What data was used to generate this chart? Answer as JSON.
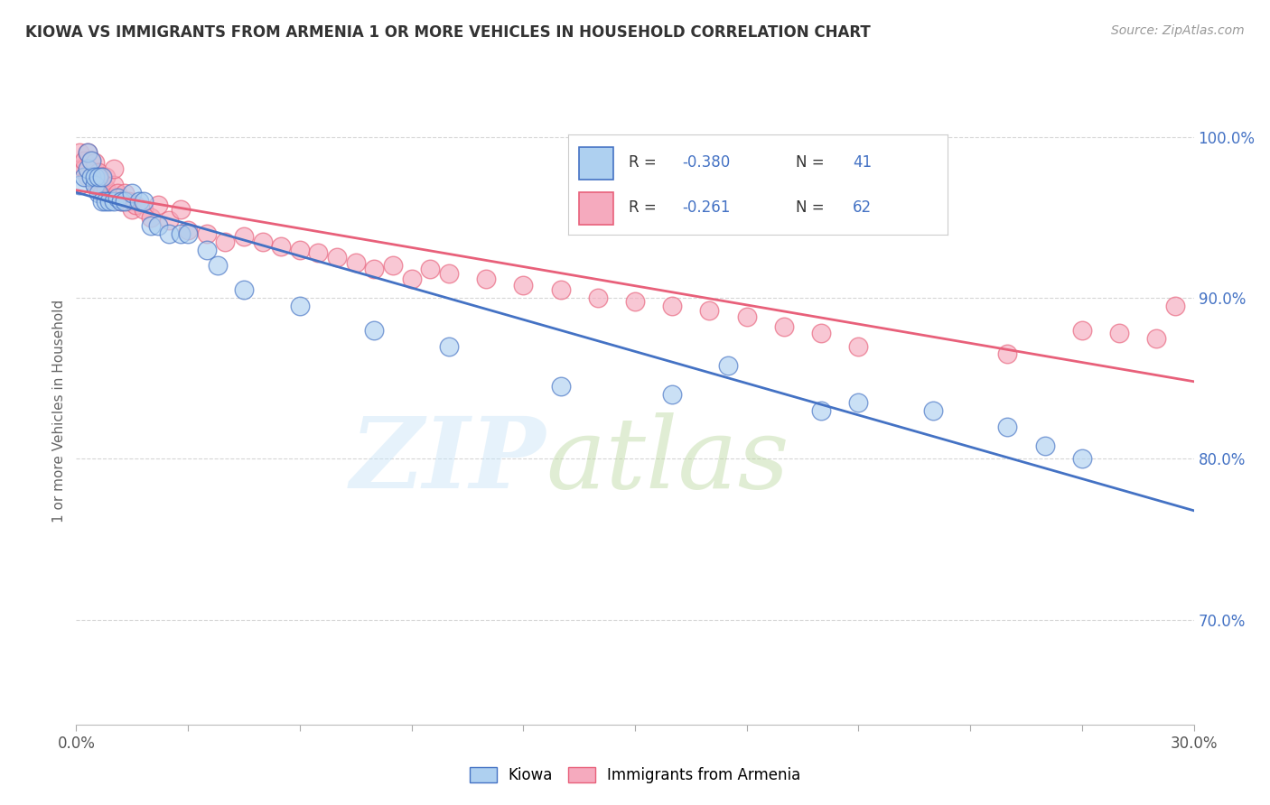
{
  "title": "KIOWA VS IMMIGRANTS FROM ARMENIA 1 OR MORE VEHICLES IN HOUSEHOLD CORRELATION CHART",
  "source": "Source: ZipAtlas.com",
  "ylabel": "1 or more Vehicles in Household",
  "ytick_labels": [
    "100.0%",
    "90.0%",
    "80.0%",
    "70.0%"
  ],
  "ytick_values": [
    1.0,
    0.9,
    0.8,
    0.7
  ],
  "xlim": [
    0.0,
    0.3
  ],
  "ylim": [
    0.635,
    1.025
  ],
  "kiowa_R": -0.38,
  "kiowa_N": 41,
  "armenia_R": -0.261,
  "armenia_N": 62,
  "kiowa_color": "#aed0f0",
  "armenia_color": "#f5aabe",
  "kiowa_line_color": "#4472c4",
  "armenia_line_color": "#e8607a",
  "background_color": "#ffffff",
  "grid_color": "#cccccc",
  "kiowa_x": [
    0.001,
    0.002,
    0.003,
    0.003,
    0.004,
    0.004,
    0.005,
    0.005,
    0.006,
    0.006,
    0.007,
    0.007,
    0.008,
    0.009,
    0.01,
    0.011,
    0.012,
    0.013,
    0.015,
    0.017,
    0.018,
    0.02,
    0.022,
    0.025,
    0.028,
    0.03,
    0.035,
    0.038,
    0.045,
    0.06,
    0.08,
    0.1,
    0.13,
    0.16,
    0.175,
    0.2,
    0.21,
    0.23,
    0.25,
    0.26,
    0.27
  ],
  "kiowa_y": [
    0.97,
    0.975,
    0.98,
    0.99,
    0.975,
    0.985,
    0.97,
    0.975,
    0.965,
    0.975,
    0.96,
    0.975,
    0.96,
    0.96,
    0.96,
    0.962,
    0.96,
    0.96,
    0.965,
    0.96,
    0.96,
    0.945,
    0.945,
    0.94,
    0.94,
    0.94,
    0.93,
    0.92,
    0.905,
    0.895,
    0.88,
    0.87,
    0.845,
    0.84,
    0.858,
    0.83,
    0.835,
    0.83,
    0.82,
    0.808,
    0.8
  ],
  "armenia_x": [
    0.001,
    0.001,
    0.002,
    0.002,
    0.003,
    0.003,
    0.004,
    0.004,
    0.005,
    0.005,
    0.005,
    0.006,
    0.006,
    0.007,
    0.007,
    0.008,
    0.008,
    0.009,
    0.01,
    0.01,
    0.011,
    0.012,
    0.013,
    0.014,
    0.015,
    0.016,
    0.018,
    0.02,
    0.022,
    0.025,
    0.028,
    0.03,
    0.035,
    0.04,
    0.045,
    0.05,
    0.055,
    0.06,
    0.065,
    0.07,
    0.075,
    0.08,
    0.085,
    0.09,
    0.095,
    0.1,
    0.11,
    0.12,
    0.13,
    0.14,
    0.15,
    0.16,
    0.17,
    0.18,
    0.19,
    0.2,
    0.21,
    0.25,
    0.27,
    0.28,
    0.29,
    0.295
  ],
  "armenia_y": [
    0.98,
    0.99,
    0.98,
    0.985,
    0.975,
    0.99,
    0.975,
    0.985,
    0.97,
    0.978,
    0.984,
    0.972,
    0.978,
    0.965,
    0.975,
    0.968,
    0.975,
    0.962,
    0.97,
    0.98,
    0.965,
    0.96,
    0.965,
    0.96,
    0.955,
    0.958,
    0.955,
    0.95,
    0.958,
    0.948,
    0.955,
    0.942,
    0.94,
    0.935,
    0.938,
    0.935,
    0.932,
    0.93,
    0.928,
    0.925,
    0.922,
    0.918,
    0.92,
    0.912,
    0.918,
    0.915,
    0.912,
    0.908,
    0.905,
    0.9,
    0.898,
    0.895,
    0.892,
    0.888,
    0.882,
    0.878,
    0.87,
    0.865,
    0.88,
    0.878,
    0.875,
    0.895
  ]
}
